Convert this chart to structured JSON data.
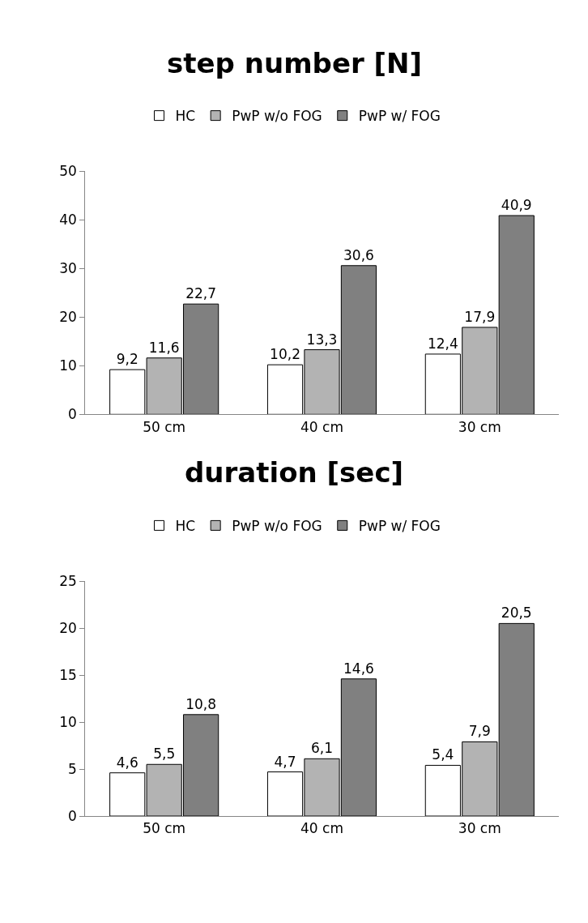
{
  "chart_data": [
    {
      "type": "bar",
      "title": "step number [N]",
      "categories": [
        "50 cm",
        "40 cm",
        "30 cm"
      ],
      "series": [
        {
          "name": "HC",
          "color": "#ffffff",
          "values": [
            9.2,
            10.2,
            12.4
          ],
          "value_labels": [
            "9,2",
            "10,2",
            "12,4"
          ]
        },
        {
          "name": "PwP w/o FOG",
          "color": "#b3b3b3",
          "values": [
            11.6,
            13.3,
            17.9
          ],
          "value_labels": [
            "11,6",
            "13,3",
            "17,9"
          ]
        },
        {
          "name": "PwP w/ FOG",
          "color": "#808080",
          "values": [
            22.7,
            30.6,
            40.9
          ],
          "value_labels": [
            "22,7",
            "30,6",
            "40,9"
          ]
        }
      ],
      "ylim": [
        0,
        50
      ],
      "yticks": [
        0,
        10,
        20,
        30,
        40,
        50
      ],
      "legend": "top"
    },
    {
      "type": "bar",
      "title": "duration [sec]",
      "categories": [
        "50 cm",
        "40 cm",
        "30 cm"
      ],
      "series": [
        {
          "name": "HC",
          "color": "#ffffff",
          "values": [
            4.6,
            4.7,
            5.4
          ],
          "value_labels": [
            "4,6",
            "4,7",
            "5,4"
          ]
        },
        {
          "name": "PwP w/o FOG",
          "color": "#b3b3b3",
          "values": [
            5.5,
            6.1,
            7.9
          ],
          "value_labels": [
            "5,5",
            "6,1",
            "7,9"
          ]
        },
        {
          "name": "PwP w/ FOG",
          "color": "#808080",
          "values": [
            10.8,
            14.6,
            20.5
          ],
          "value_labels": [
            "10,8",
            "14,6",
            "20,5"
          ]
        }
      ],
      "ylim": [
        0,
        25
      ],
      "yticks": [
        0,
        5,
        10,
        15,
        20,
        25
      ],
      "legend": "top"
    }
  ]
}
